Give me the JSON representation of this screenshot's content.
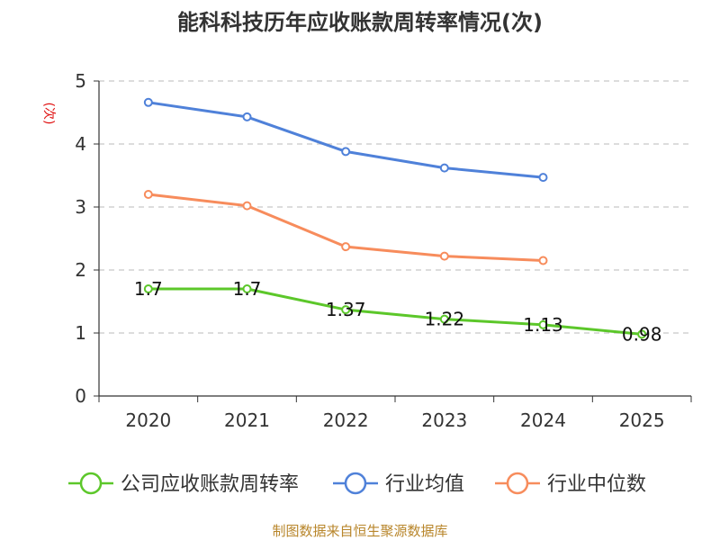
{
  "chart_data": {
    "type": "line",
    "title": "能科科技历年应收账款周转率情况(次)",
    "ylabel": "(次)",
    "xlabel": "",
    "ylim": [
      0,
      5
    ],
    "yticks": [
      "0",
      "1",
      "2",
      "3",
      "4",
      "5"
    ],
    "categories": [
      "2020",
      "2021",
      "2022",
      "2023",
      "2024",
      "2025"
    ],
    "grid": true,
    "legend_position": "bottom",
    "series": [
      {
        "name": "公司应收账款周转率",
        "color": "#5cc72a",
        "values": [
          1.7,
          1.7,
          1.37,
          1.22,
          1.13,
          0.98
        ],
        "labels": [
          "1.7",
          "1.7",
          "1.37",
          "1.22",
          "1.13",
          "0.98"
        ]
      },
      {
        "name": "行业均值",
        "color": "#4f81d9",
        "values": [
          4.66,
          4.43,
          3.88,
          3.62,
          3.47,
          null
        ]
      },
      {
        "name": "行业中位数",
        "color": "#f78c5c",
        "values": [
          3.2,
          3.02,
          2.37,
          2.22,
          2.15,
          null
        ]
      }
    ],
    "source": "制图数据来自恒生聚源数据库"
  }
}
